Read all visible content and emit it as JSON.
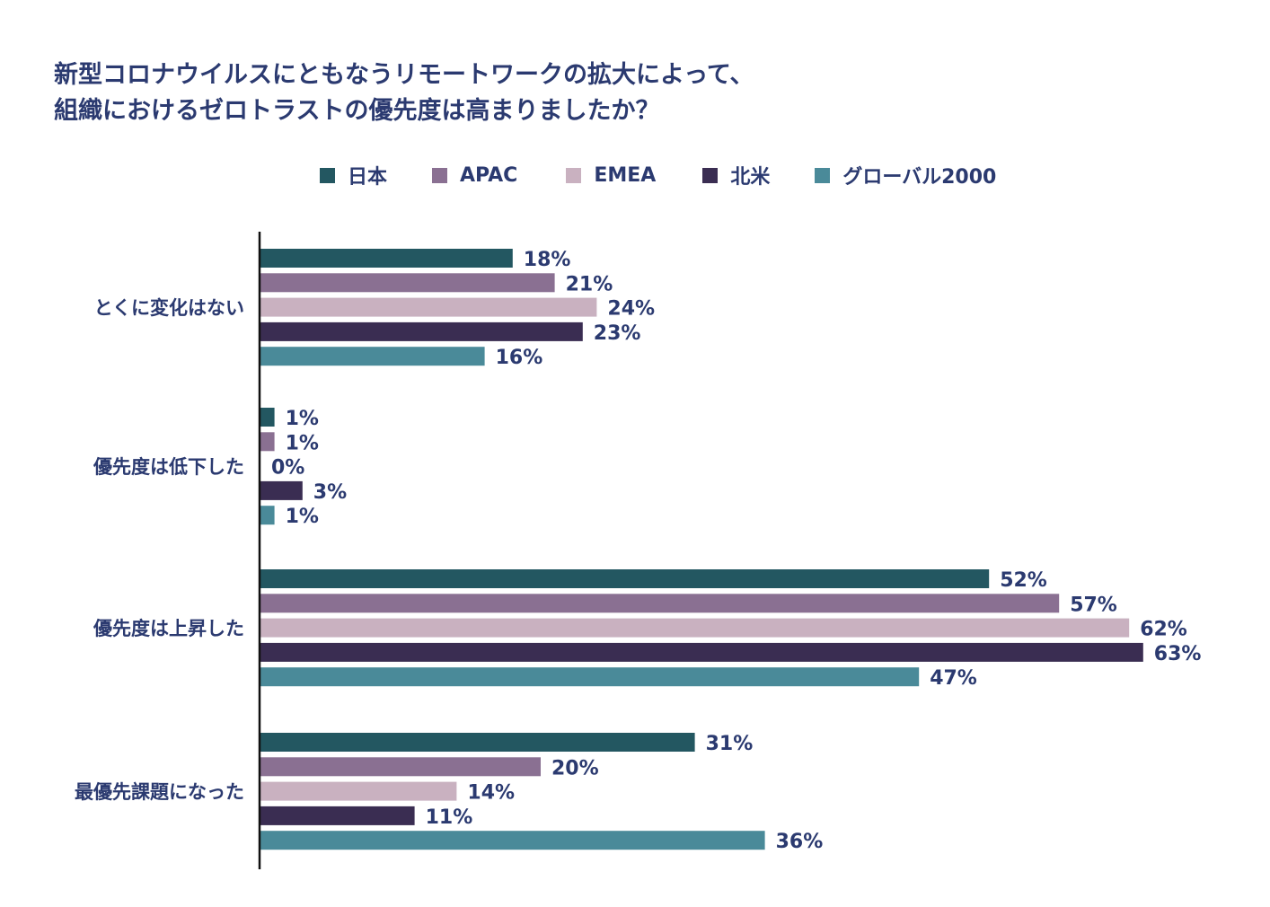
{
  "chart_data": {
    "type": "bar",
    "orientation": "horizontal",
    "title": [
      "新型コロナウイルスにともなうリモートワークの拡大によって、",
      "組織におけるゼロトラストの優先度は高まりましたか？"
    ],
    "categories": [
      "とくに変化はない",
      "優先度は低下した",
      "優先度は上昇した",
      "最優先課題になった"
    ],
    "series": [
      {
        "name": "日本",
        "color": "#235761",
        "values": [
          18,
          1,
          52,
          31
        ]
      },
      {
        "name": "APAC",
        "color": "#8a7092",
        "values": [
          21,
          1,
          57,
          20
        ]
      },
      {
        "name": "EMEA",
        "color": "#c9b1c0",
        "values": [
          24,
          0,
          62,
          14
        ]
      },
      {
        "name": "北米",
        "color": "#3a2d52",
        "values": [
          23,
          3,
          63,
          11
        ]
      },
      {
        "name": "グローバル2000",
        "color": "#4a8a99",
        "values": [
          16,
          1,
          47,
          36
        ]
      }
    ],
    "value_suffix": "%",
    "xlim": [
      0,
      63
    ],
    "grid": false,
    "legend_position": "top"
  }
}
